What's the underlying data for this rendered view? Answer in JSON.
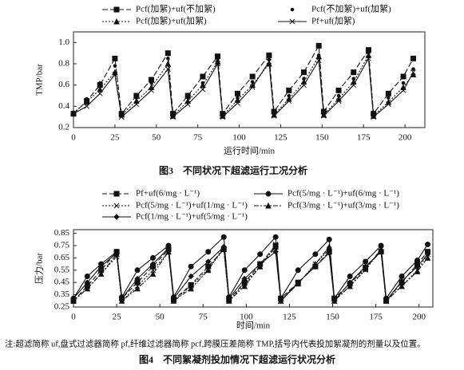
{
  "chart_data": [
    {
      "type": "line",
      "caption": "图3　不同状况下超滤运行工况分析",
      "xlabel": "运行时间/min",
      "ylabel": "TMP/bar",
      "x": [
        0,
        8,
        16,
        25,
        29,
        38,
        47,
        57,
        60,
        69,
        78,
        87,
        90,
        99,
        108,
        118,
        121,
        130,
        139,
        148,
        151,
        160,
        169,
        178,
        181,
        190,
        199,
        205
      ],
      "xlim": [
        0,
        212
      ],
      "xticks": [
        0,
        25,
        50,
        75,
        100,
        125,
        150,
        175,
        200
      ],
      "ylim": [
        0.2,
        1.1
      ],
      "yticks": [
        0.2,
        0.4,
        0.6,
        0.8,
        {
          "value": 1.0,
          "label": "1.0"
        }
      ],
      "series": [
        {
          "name": "Pcf(加絮)+uf(不加絮)",
          "color": "#111",
          "dash": "7 3",
          "marker": "square",
          "values": [
            0.33,
            0.45,
            0.6,
            0.85,
            0.33,
            0.5,
            0.65,
            0.9,
            0.33,
            0.5,
            0.68,
            0.87,
            0.33,
            0.52,
            0.68,
            0.88,
            0.35,
            0.55,
            0.72,
            0.97,
            0.35,
            0.55,
            0.72,
            0.93,
            0.33,
            0.52,
            0.68,
            0.85
          ]
        },
        {
          "name": "Pcf(不加絮)+uf(加絮)",
          "color": "#111",
          "dash": "none",
          "marker": "dot",
          "values": [
            0.34,
            0.47,
            0.62,
            0.78,
            0.32,
            0.48,
            0.62,
            0.85,
            0.32,
            0.48,
            0.62,
            0.83,
            0.32,
            0.48,
            0.63,
            0.84,
            0.33,
            0.5,
            0.66,
            0.88,
            0.33,
            0.5,
            0.66,
            0.9,
            0.32,
            0.48,
            0.62,
            0.75
          ]
        },
        {
          "name": "Pcf(加絮)+uf(加絮)",
          "color": "#111",
          "dash": "2 2",
          "marker": "triangle",
          "values": [
            0.34,
            0.44,
            0.56,
            0.72,
            0.32,
            0.45,
            0.58,
            0.8,
            0.31,
            0.45,
            0.6,
            0.82,
            0.31,
            0.46,
            0.6,
            0.8,
            0.32,
            0.47,
            0.63,
            0.87,
            0.32,
            0.47,
            0.63,
            0.88,
            0.31,
            0.44,
            0.58,
            0.7
          ]
        },
        {
          "name": "Pf+uf(加絮)",
          "color": "#111",
          "dash": "",
          "marker": "x",
          "values": [
            0.33,
            0.4,
            0.52,
            0.7,
            0.3,
            0.42,
            0.55,
            0.75,
            0.3,
            0.42,
            0.56,
            0.8,
            0.3,
            0.43,
            0.58,
            0.82,
            0.31,
            0.45,
            0.6,
            0.83,
            0.31,
            0.45,
            0.6,
            0.85,
            0.3,
            0.42,
            0.55,
            0.72
          ]
        }
      ]
    },
    {
      "type": "line",
      "caption": "图4　不同絮凝剂投加情况下超滤运行状况分析",
      "xlabel": "时间/min",
      "ylabel": "压力/bar",
      "x": [
        0,
        8,
        16,
        25,
        28,
        37,
        46,
        55,
        58,
        68,
        78,
        87,
        90,
        99,
        108,
        117,
        120,
        130,
        140,
        148,
        151,
        160,
        169,
        178,
        181,
        190,
        199,
        205
      ],
      "xlim": [
        0,
        208
      ],
      "xticks": [
        0,
        25,
        50,
        75,
        100,
        125,
        150,
        175,
        200
      ],
      "ylim": [
        0.25,
        0.88
      ],
      "yticks": [
        0.25,
        0.35,
        0.45,
        0.55,
        0.65,
        0.75,
        0.85
      ],
      "series": [
        {
          "name": "Pf+uf(6/mg · L⁻¹)",
          "color": "#111",
          "dash": "6 3",
          "marker": "square",
          "values": [
            0.3,
            0.42,
            0.55,
            0.7,
            0.32,
            0.45,
            0.58,
            0.72,
            0.31,
            0.43,
            0.58,
            0.72,
            0.31,
            0.45,
            0.6,
            0.75,
            0.32,
            0.45,
            0.58,
            0.7,
            0.32,
            0.44,
            0.57,
            0.7,
            0.3,
            0.45,
            0.6,
            0.7
          ]
        },
        {
          "name": "Pcf(5/mg · L⁻¹)+uf(6/mg · L⁻¹)",
          "color": "#111",
          "dash": "",
          "marker": "circle",
          "values": [
            0.32,
            0.5,
            0.6,
            0.7,
            0.33,
            0.55,
            0.65,
            0.75,
            0.33,
            0.58,
            0.7,
            0.82,
            0.33,
            0.55,
            0.68,
            0.82,
            0.32,
            0.55,
            0.68,
            0.8,
            0.32,
            0.5,
            0.62,
            0.75,
            0.32,
            0.5,
            0.63,
            0.76
          ]
        },
        {
          "name": "Pcf(5/mg · L⁻¹)+uf(1/mg · L⁻¹)",
          "color": "#111",
          "dash": "2 2",
          "marker": "x",
          "values": [
            0.3,
            0.4,
            0.52,
            0.66,
            0.3,
            0.42,
            0.55,
            0.7,
            0.3,
            0.42,
            0.56,
            0.72,
            0.3,
            0.44,
            0.58,
            0.76,
            0.3,
            0.44,
            0.6,
            0.72,
            0.3,
            0.42,
            0.55,
            0.72,
            0.3,
            0.42,
            0.55,
            0.68
          ]
        },
        {
          "name": "Pcf(3/mg · L⁻¹)+uf(3/mg · L⁻¹)",
          "color": "#111",
          "dash": "6 2 2 2",
          "marker": "triangle",
          "values": [
            0.3,
            0.4,
            0.52,
            0.68,
            0.3,
            0.4,
            0.52,
            0.7,
            0.3,
            0.4,
            0.55,
            0.74,
            0.3,
            0.42,
            0.58,
            0.74,
            0.3,
            0.44,
            0.6,
            0.74,
            0.3,
            0.42,
            0.56,
            0.72,
            0.3,
            0.42,
            0.54,
            0.65
          ]
        },
        {
          "name": "Pcf(1/mg · L⁻¹)+uf(5/mg · L⁻¹)",
          "color": "#111",
          "dash": "",
          "marker": "diamond",
          "values": [
            0.32,
            0.45,
            0.58,
            0.69,
            0.32,
            0.48,
            0.6,
            0.73,
            0.32,
            0.5,
            0.62,
            0.74,
            0.32,
            0.48,
            0.6,
            0.7,
            0.3,
            0.45,
            0.58,
            0.69,
            0.3,
            0.45,
            0.58,
            0.7,
            0.3,
            0.46,
            0.58,
            0.68
          ]
        }
      ]
    }
  ],
  "note": "注:超滤简称 uf,盘式过滤器简称 pf,纤维过滤器简称 pcf,跨膜压差简称 TMP,括号内代表投加絮凝剂的剂量以及位置。"
}
